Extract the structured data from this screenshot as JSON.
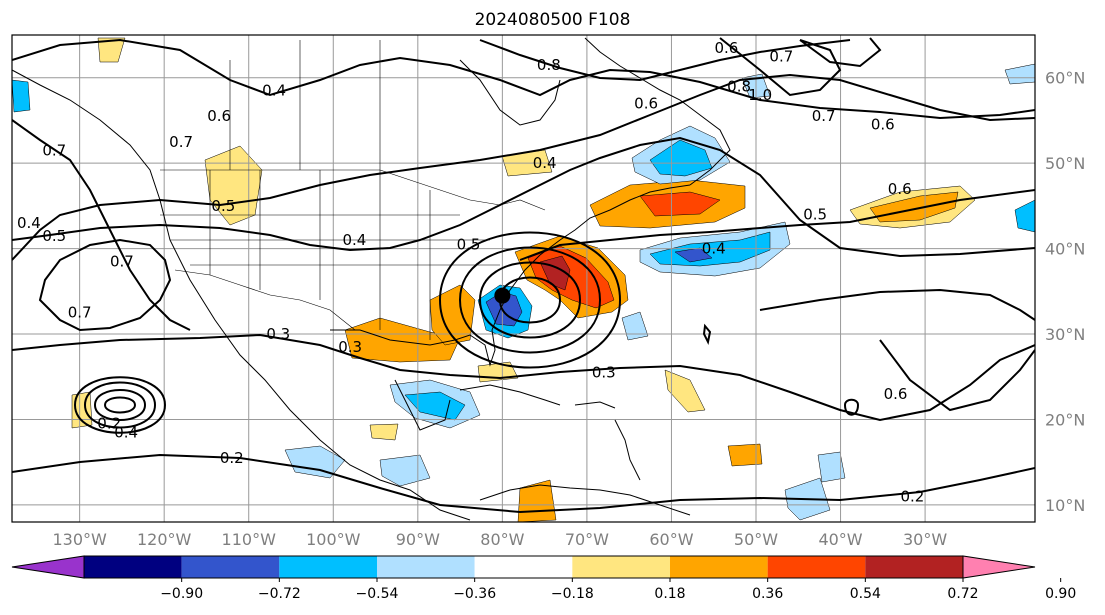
{
  "title": "2024080500 F108",
  "map": {
    "lon_range": [
      -138,
      -17
    ],
    "lat_range": [
      8,
      65
    ],
    "x_ticks": [
      {
        "value": -130,
        "label": "130°W"
      },
      {
        "value": -120,
        "label": "120°W"
      },
      {
        "value": -110,
        "label": "110°W"
      },
      {
        "value": -100,
        "label": "100°W"
      },
      {
        "value": -90,
        "label": "90°W"
      },
      {
        "value": -80,
        "label": "80°W"
      },
      {
        "value": -70,
        "label": "70°W"
      },
      {
        "value": -60,
        "label": "60°W"
      },
      {
        "value": -50,
        "label": "50°W"
      },
      {
        "value": -40,
        "label": "40°W"
      },
      {
        "value": -30,
        "label": "30°W"
      }
    ],
    "y_ticks": [
      {
        "value": 10,
        "label": "10°N"
      },
      {
        "value": 20,
        "label": "20°N"
      },
      {
        "value": 30,
        "label": "30°N"
      },
      {
        "value": 40,
        "label": "40°N"
      },
      {
        "value": 50,
        "label": "50°N"
      },
      {
        "value": 60,
        "label": "60°N"
      }
    ],
    "grid": true,
    "storm_marker": {
      "lon": -80,
      "lat": 34.5
    }
  },
  "colorbar": {
    "levels": [
      "−0.90",
      "−0.72",
      "−0.54",
      "−0.36",
      "−0.18",
      "0.18",
      "0.36",
      "0.54",
      "0.72",
      "0.90"
    ],
    "colors": [
      "#9933cc",
      "#000080",
      "#3355cc",
      "#00bfff",
      "#b0e0ff",
      "#ffffff",
      "#ffe680",
      "#ffa500",
      "#ff4500",
      "#b22222",
      "#ff80b0"
    ],
    "extend": "both"
  },
  "contour_labels": [
    {
      "text": "0.8",
      "lon": -74.5,
      "lat": 61.5
    },
    {
      "text": "0.6",
      "lon": -63,
      "lat": 57
    },
    {
      "text": "0.6",
      "lon": -53.5,
      "lat": 63.5
    },
    {
      "text": "0.8",
      "lon": -52,
      "lat": 59
    },
    {
      "text": "1.0",
      "lon": -49.5,
      "lat": 58
    },
    {
      "text": "0.7",
      "lon": -47,
      "lat": 62.5
    },
    {
      "text": "0.7",
      "lon": -42,
      "lat": 55.5
    },
    {
      "text": "0.6",
      "lon": -35,
      "lat": 54.5
    },
    {
      "text": "0.4",
      "lon": -107,
      "lat": 58.5
    },
    {
      "text": "0.6",
      "lon": -113.5,
      "lat": 55.5
    },
    {
      "text": "0.7",
      "lon": -118,
      "lat": 52.5
    },
    {
      "text": "0.7",
      "lon": -133,
      "lat": 51.5
    },
    {
      "text": "0.5",
      "lon": -113,
      "lat": 45
    },
    {
      "text": "0.4",
      "lon": -136,
      "lat": 43
    },
    {
      "text": "0.5",
      "lon": -133,
      "lat": 41.5
    },
    {
      "text": "0.7",
      "lon": -125,
      "lat": 38.5
    },
    {
      "text": "0.7",
      "lon": -130,
      "lat": 32.5
    },
    {
      "text": "0.4",
      "lon": -97.5,
      "lat": 41
    },
    {
      "text": "0.4",
      "lon": -75,
      "lat": 50
    },
    {
      "text": "0.5",
      "lon": -84,
      "lat": 40.5
    },
    {
      "text": "0.6",
      "lon": -33,
      "lat": 47
    },
    {
      "text": "0.5",
      "lon": -43,
      "lat": 44
    },
    {
      "text": "0.4",
      "lon": -55,
      "lat": 40
    },
    {
      "text": "0.3",
      "lon": -106.5,
      "lat": 30
    },
    {
      "text": "0.3",
      "lon": -98,
      "lat": 28.5
    },
    {
      "text": "0.3",
      "lon": -68,
      "lat": 25.5
    },
    {
      "text": "0.2",
      "lon": -126.5,
      "lat": 19.5
    },
    {
      "text": "0.4",
      "lon": -124.5,
      "lat": 18.5
    },
    {
      "text": "0.2",
      "lon": -112,
      "lat": 15.5
    },
    {
      "text": "0.6",
      "lon": -33.5,
      "lat": 23
    },
    {
      "text": "0.2",
      "lon": -31.5,
      "lat": 11
    }
  ]
}
